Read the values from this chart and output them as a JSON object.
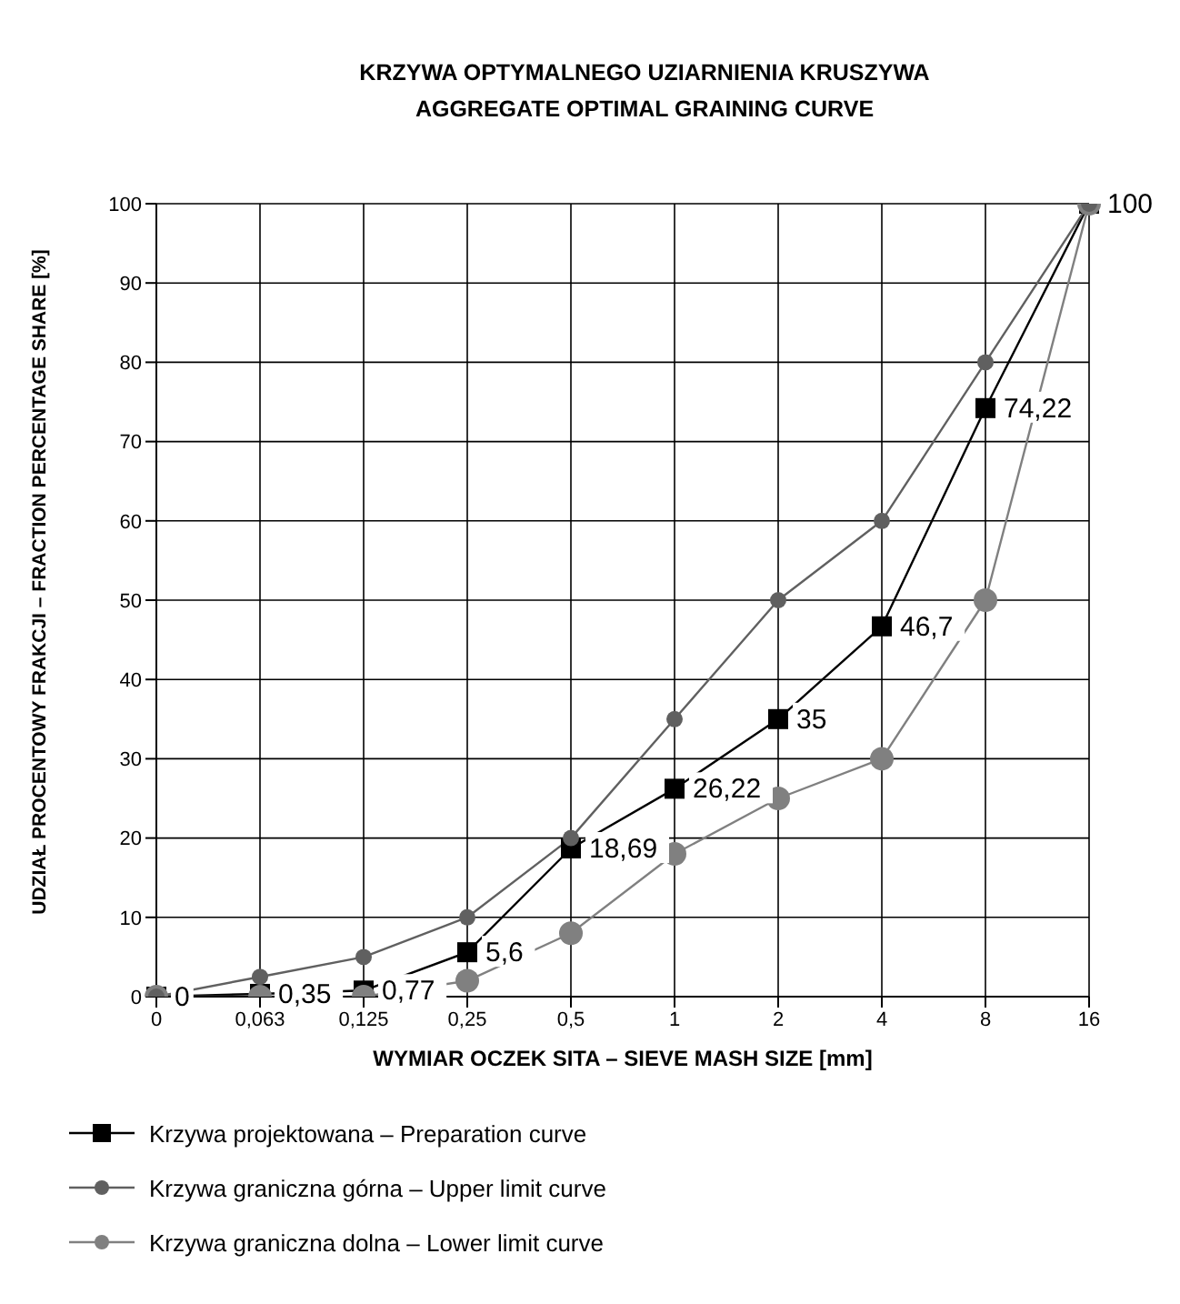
{
  "chart_data": {
    "type": "line",
    "title": "KRZYWA OPTYMALNEGO UZIARNIENIA KRUSZYWA\nAGGREGATE OPTIMAL GRAINING CURVE",
    "xlabel": "WYMIAR OCZEK SITA – SIEVE MASH SIZE [mm]",
    "ylabel": "UDZIAŁ PROCENTOWY FRAKCJI – FRACTION PERCENTAGE SHARE [%]",
    "categories": [
      "0",
      "0,063",
      "0,125",
      "0,25",
      "0,5",
      "1",
      "2",
      "4",
      "8",
      "16"
    ],
    "ylim": [
      0,
      100
    ],
    "yticks": [
      0,
      10,
      20,
      30,
      40,
      50,
      60,
      70,
      80,
      90,
      100
    ],
    "grid": true,
    "legend": "bottom",
    "series": [
      {
        "name": "Krzywa projektowana – Preparation curve",
        "color": "#000000",
        "marker": "square",
        "values": [
          0,
          0.35,
          0.77,
          5.6,
          18.69,
          26.22,
          35,
          46.7,
          74.22,
          100
        ],
        "value_labels": [
          "0",
          "0,35",
          "0,77",
          "5,6",
          "18,69",
          "26,22",
          "35",
          "46,7",
          "74,22",
          "100"
        ]
      },
      {
        "name": "Krzywa graniczna górna – Upper limit curve",
        "color": "#606060",
        "marker": "circle",
        "values": [
          0,
          2.5,
          5,
          10,
          20,
          35,
          50,
          60,
          80,
          100
        ]
      },
      {
        "name": "Krzywa graniczna dolna – Lower limit curve",
        "color": "#808080",
        "marker": "circle",
        "values": [
          0,
          0,
          0,
          2,
          8,
          18,
          25,
          30,
          50,
          100
        ]
      }
    ]
  }
}
